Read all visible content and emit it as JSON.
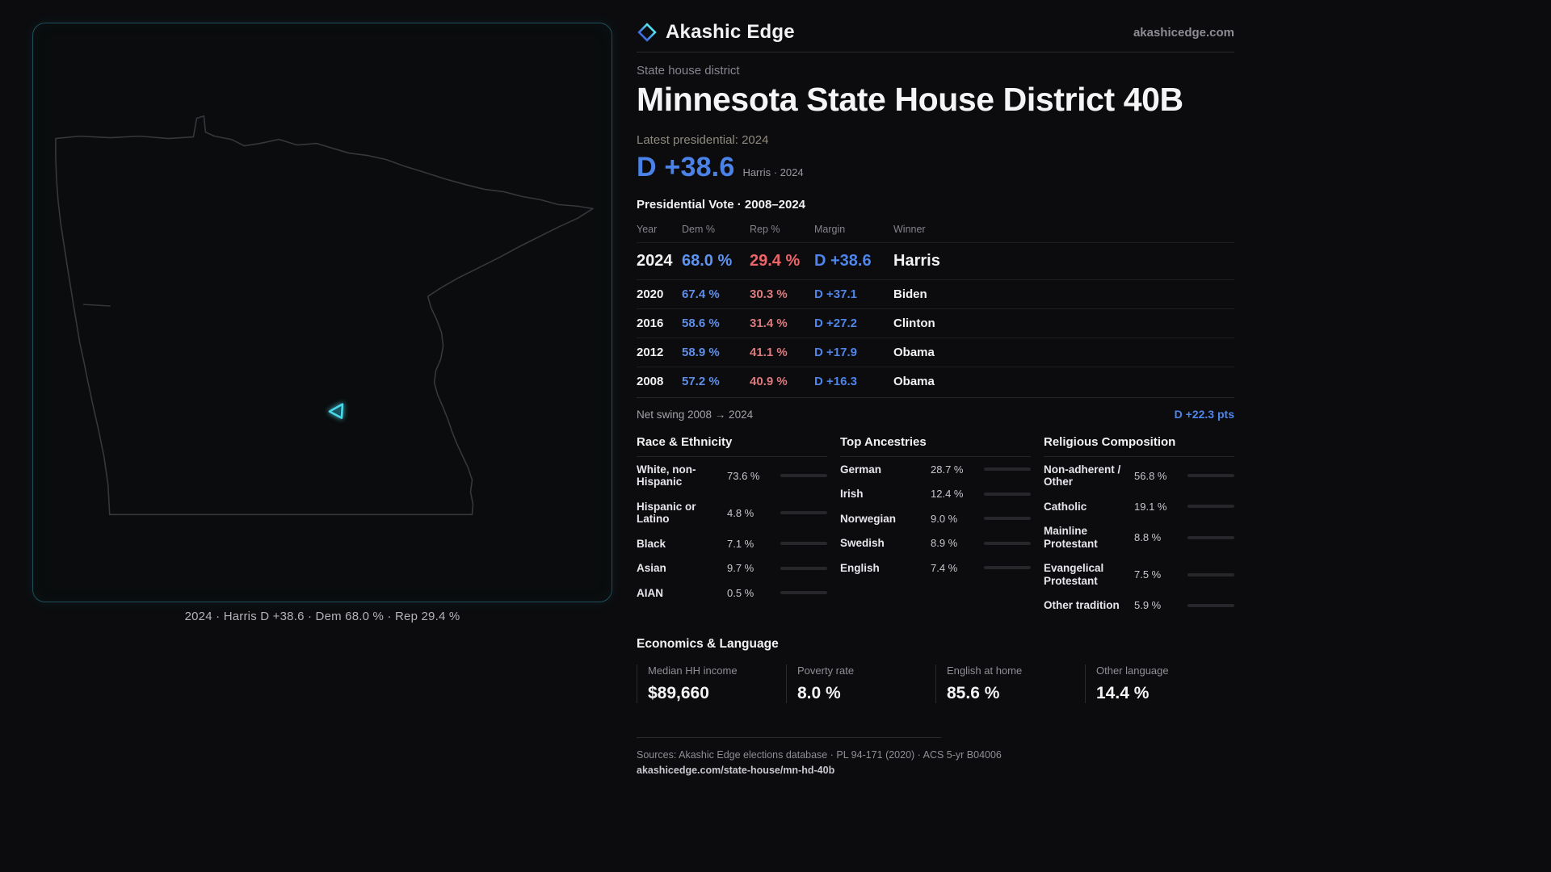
{
  "meta": {
    "brand": "Akashic Edge",
    "domain": "akashicedge.com"
  },
  "colors": {
    "dem_blue": "#4b82e8",
    "rep_red": "#e2747a",
    "accent_cyan": "#49d7ea",
    "bar_gray": "#9aa0a8"
  },
  "map": {
    "caption": "2024 · Harris D +38.6 · Dem 68.0 % · Rep 29.4 %"
  },
  "header": {
    "kicker": "State house district",
    "title": "Minnesota State House District 40B",
    "latest_label": "Latest presidential: 2024",
    "margin_value": "D +38.6",
    "margin_context": "Harris · 2024"
  },
  "table": {
    "title": "Presidential Vote · 2008–2024",
    "columns": [
      "Year",
      "Dem %",
      "Rep %",
      "Margin",
      "Winner"
    ],
    "rows": [
      {
        "year": "2024",
        "dem": "68.0 %",
        "rep": "29.4 %",
        "margin": "D +38.6",
        "winner": "Harris"
      },
      {
        "year": "2020",
        "dem": "67.4 %",
        "rep": "30.3 %",
        "margin": "D +37.1",
        "winner": "Biden"
      },
      {
        "year": "2016",
        "dem": "58.6 %",
        "rep": "31.4 %",
        "margin": "D +27.2",
        "winner": "Clinton"
      },
      {
        "year": "2012",
        "dem": "58.9 %",
        "rep": "41.1 %",
        "margin": "D +17.9",
        "winner": "Obama"
      },
      {
        "year": "2008",
        "dem": "57.2 %",
        "rep": "40.9 %",
        "margin": "D +16.3",
        "winner": "Obama"
      }
    ],
    "net_swing_label": "Net swing 2008 → 2024",
    "net_swing_value": "D +22.3 pts"
  },
  "demographics": [
    {
      "title": "Race & Ethnicity",
      "rows": [
        {
          "label": "White, non-Hispanic",
          "value": "73.6 %",
          "pct": 73.6,
          "color": "#9aa0a8"
        },
        {
          "label": "Hispanic or Latino",
          "value": "4.8 %",
          "pct": 4.8,
          "color": "#e5c34b"
        },
        {
          "label": "Black",
          "value": "7.1 %",
          "pct": 7.1,
          "color": "#8f7ddf"
        },
        {
          "label": "Asian",
          "value": "9.7 %",
          "pct": 9.7,
          "color": "#3ecf9e"
        },
        {
          "label": "AIAN",
          "value": "0.5 %",
          "pct": 0.5,
          "color": "#6a6a72"
        }
      ]
    },
    {
      "title": "Top Ancestries",
      "rows": [
        {
          "label": "German",
          "value": "28.7 %",
          "pct": 28.7,
          "color": "#9aa0a8"
        },
        {
          "label": "Irish",
          "value": "12.4 %",
          "pct": 12.4,
          "color": "#9aa0a8"
        },
        {
          "label": "Norwegian",
          "value": "9.0 %",
          "pct": 9.0,
          "color": "#9aa0a8"
        },
        {
          "label": "Swedish",
          "value": "8.9 %",
          "pct": 8.9,
          "color": "#9aa0a8"
        },
        {
          "label": "English",
          "value": "7.4 %",
          "pct": 7.4,
          "color": "#9aa0a8"
        }
      ]
    },
    {
      "title": "Religious Composition",
      "rows": [
        {
          "label": "Non-adherent / Other",
          "value": "56.8 %",
          "pct": 56.8,
          "color": "#9aa0a8"
        },
        {
          "label": "Catholic",
          "value": "19.1 %",
          "pct": 19.1,
          "color": "#e5c34b"
        },
        {
          "label": "Mainline Protestant",
          "value": "8.8 %",
          "pct": 8.8,
          "color": "#5b8def"
        },
        {
          "label": "Evangelical Protestant",
          "value": "7.5 %",
          "pct": 7.5,
          "color": "#e87d8a"
        },
        {
          "label": "Other tradition",
          "value": "5.9 %",
          "pct": 5.9,
          "color": "#9aa0a8"
        }
      ]
    }
  ],
  "economics": {
    "title": "Economics & Language",
    "stats": [
      {
        "label": "Median HH income",
        "value": "$89,660"
      },
      {
        "label": "Poverty rate",
        "value": "8.0 %"
      },
      {
        "label": "English at home",
        "value": "85.6 %"
      },
      {
        "label": "Other language",
        "value": "14.4 %"
      }
    ]
  },
  "footer": {
    "sources": "Sources: Akashic Edge elections database · PL 94-171 (2020) · ACS 5-yr B04006",
    "permalink": "akashicedge.com/state-house/mn-hd-40b"
  }
}
